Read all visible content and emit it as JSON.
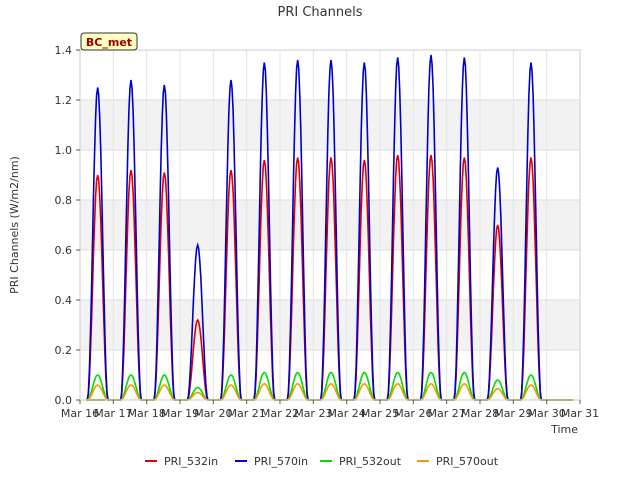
{
  "chart_data": {
    "type": "line",
    "title": "PRI Channels",
    "xlabel": "Time",
    "ylabel": "PRI Channels (W/m2/nm)",
    "xlim": [
      16,
      31
    ],
    "ylim": [
      0,
      1.4
    ],
    "x_ticks": [
      16,
      17,
      18,
      19,
      20,
      21,
      22,
      23,
      24,
      25,
      26,
      27,
      28,
      29,
      30,
      31
    ],
    "x_tick_labels": [
      "Mar 16",
      "Mar 17",
      "Mar 18",
      "Mar 19",
      "Mar 20",
      "Mar 21",
      "Mar 22",
      "Mar 23",
      "Mar 24",
      "Mar 25",
      "Mar 26",
      "Mar 27",
      "Mar 28",
      "Mar 29",
      "Mar 30",
      "Mar 31"
    ],
    "y_ticks": [
      0.0,
      0.2,
      0.4,
      0.6,
      0.8,
      1.0,
      1.2,
      1.4
    ],
    "y_tick_labels": [
      "0.0",
      "0.2",
      "0.4",
      "0.6",
      "0.8",
      "1.0",
      "1.2",
      "1.4"
    ],
    "grid": true,
    "legend_position": "bottom",
    "annotation": "BC_met",
    "days": [
      17,
      18,
      19,
      20,
      21,
      22,
      23,
      24,
      25,
      26,
      27,
      28,
      29,
      30
    ],
    "series": [
      {
        "name": "PRI_532in",
        "color": "#dd0000",
        "peaks": [
          0.9,
          0.92,
          0.91,
          0.32,
          0.92,
          0.96,
          0.97,
          0.97,
          0.96,
          0.98,
          0.98,
          0.97,
          0.7,
          0.97
        ]
      },
      {
        "name": "PRI_570in",
        "color": "#0000cc",
        "peaks": [
          1.25,
          1.28,
          1.26,
          0.62,
          1.28,
          1.35,
          1.36,
          1.36,
          1.35,
          1.37,
          1.38,
          1.37,
          0.93,
          1.35
        ]
      },
      {
        "name": "PRI_532out",
        "color": "#00dd00",
        "peaks": [
          0.1,
          0.1,
          0.1,
          0.05,
          0.1,
          0.11,
          0.11,
          0.11,
          0.11,
          0.11,
          0.11,
          0.11,
          0.08,
          0.1
        ]
      },
      {
        "name": "PRI_570out",
        "color": "#e8a000",
        "peaks": [
          0.06,
          0.06,
          0.06,
          0.03,
          0.06,
          0.065,
          0.065,
          0.065,
          0.065,
          0.065,
          0.065,
          0.065,
          0.045,
          0.06
        ]
      }
    ]
  }
}
